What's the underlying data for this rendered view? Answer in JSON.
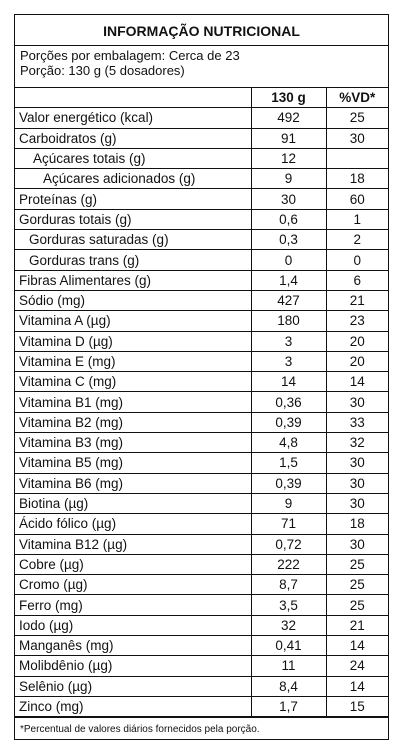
{
  "title": "INFORMAÇÃO NUTRICIONAL",
  "servings": [
    "Porções por embalagem: Cerca de 23",
    "Porção: 130 g (5 dosadores)"
  ],
  "table": {
    "header": [
      "130 g",
      "%VD*"
    ],
    "rows": [
      [
        "Valor energético (kcal)",
        "492",
        "25"
      ],
      [
        "Carboidratos (g)",
        "91",
        "30"
      ],
      [
        "Açúcares totais (g)",
        "12",
        null
      ],
      [
        "Açúcares adicionados (g)",
        "9",
        "18"
      ],
      [
        "Proteínas (g)",
        "30",
        "60"
      ],
      [
        "Gorduras totais (g)",
        "0,6",
        "1"
      ],
      [
        "Gorduras saturadas (g)",
        "0,3",
        "2"
      ],
      [
        "Gorduras trans (g)",
        "0",
        "0"
      ],
      [
        "Fibras Alimentares (g)",
        "1,4",
        "6"
      ],
      [
        "Sódio (mg)",
        "427",
        "21"
      ],
      [
        "Vitamina A (µg)",
        "180",
        "23"
      ],
      [
        "Vitamina D (µg)",
        "3",
        "20"
      ],
      [
        "Vitamina E (mg)",
        "3",
        "20"
      ],
      [
        "Vitamina C (mg)",
        "14",
        "14"
      ],
      [
        "Vitamina B1 (mg)",
        "0,36",
        "30"
      ],
      [
        "Vitamina B2 (mg)",
        "0,39",
        "33"
      ],
      [
        "Vitamina B3 (mg)",
        "4,8",
        "32"
      ],
      [
        "Vitamina B5 (mg)",
        "1,5",
        "30"
      ],
      [
        "Vitamina B6 (mg)",
        "0,39",
        "30"
      ],
      [
        "Biotina (µg)",
        "9",
        "30"
      ],
      [
        "Ácido fólico (µg)",
        "71",
        "18"
      ],
      [
        "Vitamina B12 (µg)",
        "0,72",
        "30"
      ],
      [
        "Cobre (µg)",
        "222",
        "25"
      ],
      [
        "Cromo (µg)",
        "8,7",
        "25"
      ],
      [
        "Ferro (mg)",
        "3,5",
        "25"
      ],
      [
        "Iodo (µg)",
        "32",
        "21"
      ],
      [
        "Manganês (mg)",
        "0,41",
        "14"
      ],
      [
        "Molibdênio (µg)",
        "11",
        "24"
      ],
      [
        "Selênio (µg)",
        "8,4",
        "14"
      ],
      [
        "Zinco (mg)",
        "1,7",
        "15"
      ]
    ]
  },
  "footnote": "*Percentual de valores diários fornecidos pela porção."
}
